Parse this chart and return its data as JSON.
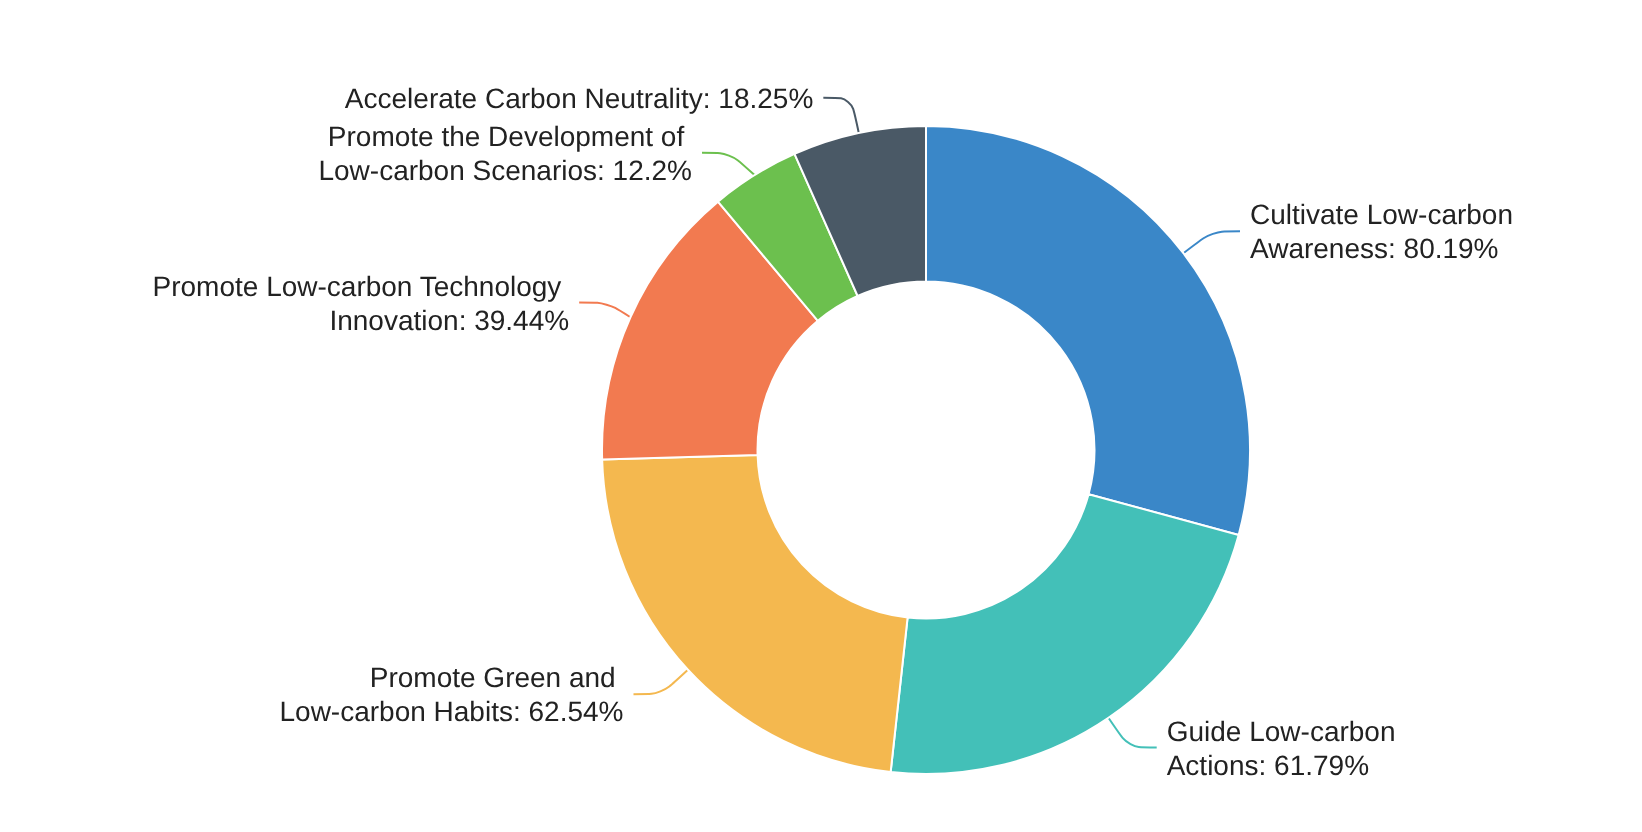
{
  "chart_data": {
    "type": "donut",
    "categories": [
      "Cultivate Low-carbon Awareness",
      "Guide Low-carbon Actions",
      "Promote Green and Low-carbon Habits",
      "Promote Low-carbon Technology Innovation",
      "Promote the Development of Low-carbon Scenarios",
      "Accelerate Carbon Neutrality"
    ],
    "values": [
      80.19,
      61.79,
      62.54,
      39.44,
      12.2,
      18.25
    ],
    "colors": [
      "#3a87c8",
      "#43c0b8",
      "#f4b84f",
      "#f27a50",
      "#6cc04e",
      "#4a5966"
    ],
    "value_labels": [
      ": 80.19%",
      ": 61.79%",
      ": 62.54%",
      ": 39.44%",
      ": 12.2%",
      ": 18.25%"
    ],
    "legend": false
  }
}
